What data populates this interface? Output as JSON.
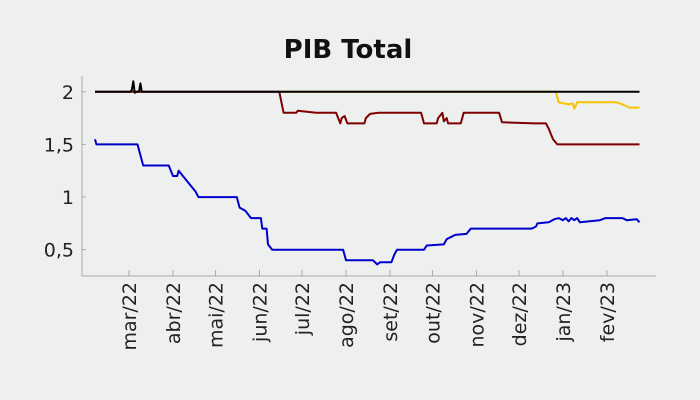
{
  "chart_data": {
    "type": "line",
    "title": "PIB Total",
    "xlabel": "",
    "ylabel": "",
    "ylim": [
      0.25,
      2.15
    ],
    "xlim": [
      0,
      390
    ],
    "y_ticks": [
      {
        "v": 2,
        "label": "2"
      },
      {
        "v": 1.5,
        "label": "1,5"
      },
      {
        "v": 1,
        "label": "1"
      },
      {
        "v": 0.5,
        "label": "0,5"
      }
    ],
    "x_ticks": [
      {
        "day": 24,
        "label": "mar/22"
      },
      {
        "day": 55,
        "label": "abr/22"
      },
      {
        "day": 85,
        "label": "mai/22"
      },
      {
        "day": 116,
        "label": "jun/22"
      },
      {
        "day": 146,
        "label": "jul/22"
      },
      {
        "day": 177,
        "label": "ago/22"
      },
      {
        "day": 208,
        "label": "set/22"
      },
      {
        "day": 238,
        "label": "out/22"
      },
      {
        "day": 269,
        "label": "nov/22"
      },
      {
        "day": 299,
        "label": "dez/22"
      },
      {
        "day": 330,
        "label": "jan/23"
      },
      {
        "day": 361,
        "label": "fev/23"
      }
    ],
    "series": [
      {
        "color": "#0000cc",
        "points": [
          [
            0,
            1.55
          ],
          [
            1,
            1.5
          ],
          [
            30,
            1.5
          ],
          [
            34,
            1.3
          ],
          [
            52,
            1.3
          ],
          [
            55,
            1.2
          ],
          [
            58,
            1.2
          ],
          [
            59,
            1.25
          ],
          [
            62,
            1.2
          ],
          [
            68,
            1.1
          ],
          [
            71,
            1.05
          ],
          [
            73,
            1.0
          ],
          [
            100,
            1.0
          ],
          [
            102,
            0.9
          ],
          [
            106,
            0.87
          ],
          [
            110,
            0.8
          ],
          [
            117,
            0.8
          ],
          [
            118,
            0.7
          ],
          [
            121,
            0.7
          ],
          [
            122,
            0.55
          ],
          [
            125,
            0.5
          ],
          [
            175,
            0.5
          ],
          [
            177,
            0.4
          ],
          [
            196,
            0.4
          ],
          [
            199,
            0.36
          ],
          [
            201,
            0.38
          ],
          [
            209,
            0.38
          ],
          [
            211,
            0.45
          ],
          [
            213,
            0.5
          ],
          [
            232,
            0.5
          ],
          [
            234,
            0.54
          ],
          [
            246,
            0.55
          ],
          [
            248,
            0.6
          ],
          [
            254,
            0.64
          ],
          [
            262,
            0.65
          ],
          [
            265,
            0.7
          ],
          [
            308,
            0.7
          ],
          [
            311,
            0.72
          ],
          [
            312,
            0.75
          ],
          [
            320,
            0.76
          ],
          [
            324,
            0.79
          ],
          [
            327,
            0.8
          ],
          [
            330,
            0.78
          ],
          [
            332,
            0.8
          ],
          [
            334,
            0.77
          ],
          [
            336,
            0.8
          ],
          [
            338,
            0.78
          ],
          [
            340,
            0.8
          ],
          [
            342,
            0.76
          ],
          [
            356,
            0.78
          ],
          [
            360,
            0.8
          ],
          [
            372,
            0.8
          ],
          [
            375,
            0.78
          ],
          [
            382,
            0.79
          ],
          [
            384,
            0.76
          ]
        ]
      },
      {
        "color": "#7f0000",
        "points": [
          [
            0,
            2.0
          ],
          [
            130,
            2.0
          ],
          [
            133,
            1.8
          ],
          [
            142,
            1.8
          ],
          [
            143,
            1.82
          ],
          [
            156,
            1.8
          ],
          [
            170,
            1.8
          ],
          [
            173,
            1.7
          ],
          [
            174,
            1.75
          ],
          [
            176,
            1.77
          ],
          [
            178,
            1.7
          ],
          [
            190,
            1.7
          ],
          [
            191,
            1.75
          ],
          [
            194,
            1.79
          ],
          [
            200,
            1.8
          ],
          [
            230,
            1.8
          ],
          [
            232,
            1.7
          ],
          [
            241,
            1.7
          ],
          [
            242,
            1.75
          ],
          [
            245,
            1.8
          ],
          [
            246,
            1.72
          ],
          [
            248,
            1.75
          ],
          [
            249,
            1.7
          ],
          [
            258,
            1.7
          ],
          [
            260,
            1.8
          ],
          [
            285,
            1.8
          ],
          [
            287,
            1.71
          ],
          [
            310,
            1.7
          ],
          [
            318,
            1.7
          ],
          [
            320,
            1.65
          ],
          [
            323,
            1.55
          ],
          [
            326,
            1.5
          ],
          [
            384,
            1.5
          ]
        ]
      },
      {
        "color": "#f5c400",
        "points": [
          [
            130,
            2.0
          ],
          [
            325,
            2.0
          ],
          [
            327,
            1.9
          ],
          [
            334,
            1.88
          ],
          [
            337,
            1.89
          ],
          [
            338,
            1.84
          ],
          [
            340,
            1.9
          ],
          [
            368,
            1.9
          ],
          [
            372,
            1.88
          ],
          [
            377,
            1.85
          ],
          [
            384,
            1.85
          ]
        ]
      },
      {
        "color": "#000000",
        "points": [
          [
            0,
            2.0
          ],
          [
            25,
            2.0
          ],
          [
            26,
            2.02
          ],
          [
            27,
            2.1
          ],
          [
            28,
            1.99
          ],
          [
            29,
            2.0
          ],
          [
            31,
            2.0
          ],
          [
            32,
            2.08
          ],
          [
            33,
            2.0
          ],
          [
            325,
            2.0
          ],
          [
            384,
            2.0
          ]
        ]
      }
    ]
  }
}
